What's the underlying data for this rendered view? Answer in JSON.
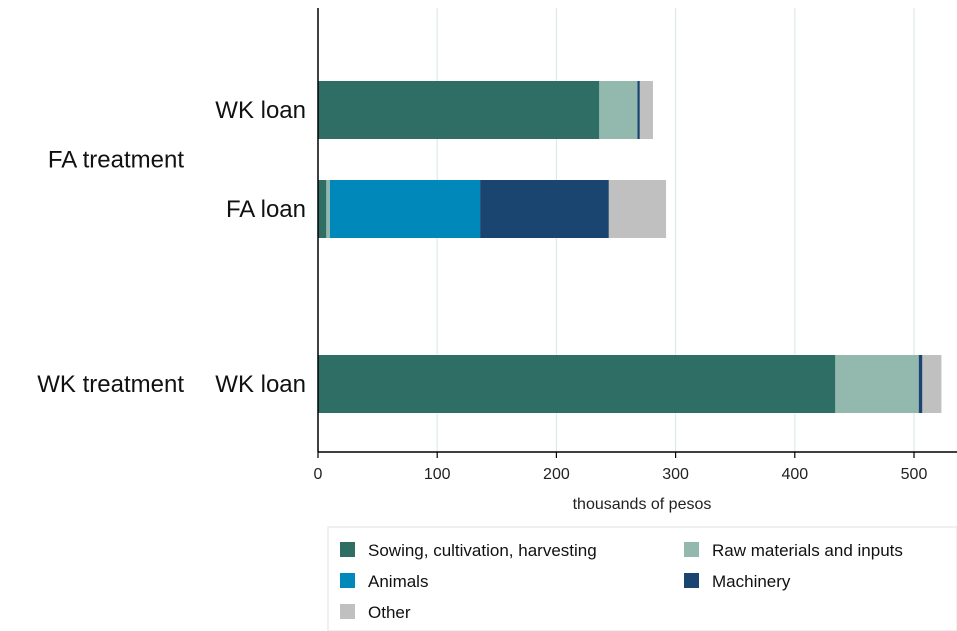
{
  "chart_data": {
    "type": "bar",
    "orientation": "horizontal",
    "stacked": true,
    "xlabel": "thousands of pesos",
    "xlim": [
      0,
      535
    ],
    "xticks": [
      0,
      100,
      200,
      300,
      400,
      500
    ],
    "grid": true,
    "legend_position": "bottom",
    "groups": [
      {
        "label": "FA treatment",
        "bars": [
          0,
          1
        ]
      },
      {
        "label": "WK treatment",
        "bars": [
          2
        ]
      }
    ],
    "categories": [
      "WK loan",
      "FA loan",
      "WK loan"
    ],
    "series": [
      {
        "name": "Sowing, cultivation, harvesting",
        "color": "#2e6e65",
        "values": [
          236,
          7,
          434
        ]
      },
      {
        "name": "Raw materials and inputs",
        "color": "#93b8ae",
        "values": [
          32,
          3,
          70
        ]
      },
      {
        "name": "Animals",
        "color": "#0088bb",
        "values": [
          0,
          126,
          0
        ]
      },
      {
        "name": "Machinery",
        "color": "#1a4570",
        "values": [
          2,
          108,
          3
        ]
      },
      {
        "name": "Other",
        "color": "#c0c0c0",
        "values": [
          11,
          48,
          16
        ]
      }
    ]
  }
}
